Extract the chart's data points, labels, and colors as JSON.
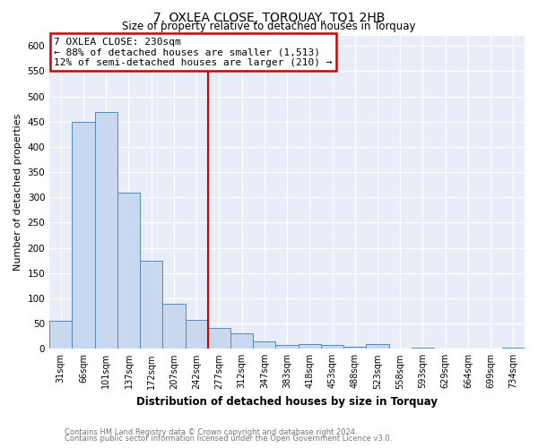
{
  "title": "7, OXLEA CLOSE, TORQUAY, TQ1 2HB",
  "subtitle": "Size of property relative to detached houses in Torquay",
  "xlabel": "Distribution of detached houses by size in Torquay",
  "ylabel": "Number of detached properties",
  "bar_labels": [
    "31sqm",
    "66sqm",
    "101sqm",
    "137sqm",
    "172sqm",
    "207sqm",
    "242sqm",
    "277sqm",
    "312sqm",
    "347sqm",
    "383sqm",
    "418sqm",
    "453sqm",
    "488sqm",
    "523sqm",
    "558sqm",
    "593sqm",
    "629sqm",
    "664sqm",
    "699sqm",
    "734sqm"
  ],
  "bar_values": [
    55,
    450,
    470,
    310,
    175,
    90,
    58,
    42,
    30,
    15,
    7,
    10,
    7,
    4,
    10,
    0,
    2,
    0,
    0,
    0,
    2
  ],
  "bar_color": "#c8d8ee",
  "bar_edgecolor": "#5588bb",
  "ylim": [
    0,
    620
  ],
  "yticks": [
    0,
    50,
    100,
    150,
    200,
    250,
    300,
    350,
    400,
    450,
    500,
    550,
    600
  ],
  "property_line_x": 6.5,
  "property_line_color": "#cc0000",
  "annotation_line1": "7 OXLEA CLOSE: 230sqm",
  "annotation_line2": "← 88% of detached houses are smaller (1,513)",
  "annotation_line3": "12% of semi-detached houses are larger (210) →",
  "annotation_box_color": "#ffffff",
  "annotation_box_edgecolor": "#cc0000",
  "footer_line1": "Contains HM Land Registry data © Crown copyright and database right 2024.",
  "footer_line2": "Contains public sector information licensed under the Open Government Licence v3.0.",
  "background_color": "#ffffff",
  "plot_bg_color": "#e8edf8"
}
